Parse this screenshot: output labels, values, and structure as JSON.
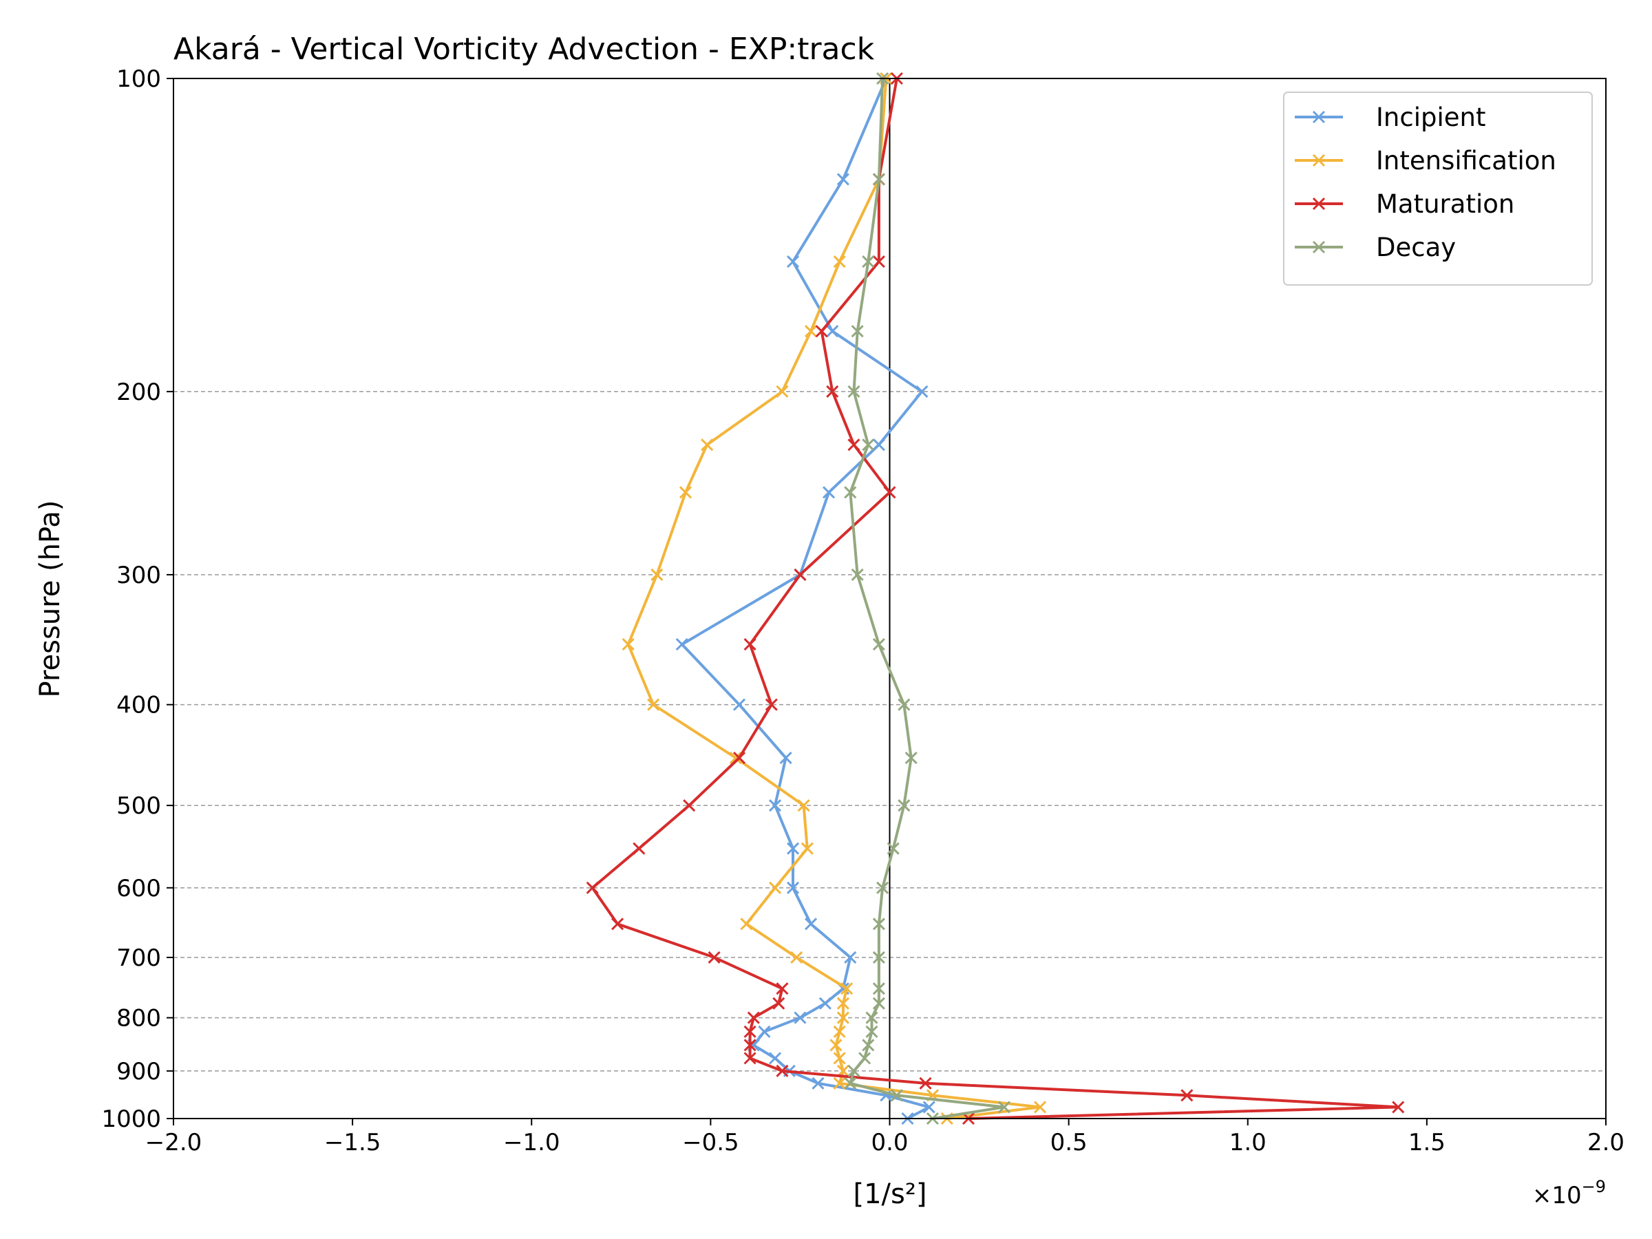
{
  "chart_data": {
    "type": "line",
    "title": "Akará - Vertical Vorticity Advection - EXP:track",
    "xlabel": "[1/s²]",
    "ylabel": "Pressure (hPa)",
    "x_multiplier": "×10",
    "x_multiplier_exp": "−9",
    "xlim": [
      -2.0,
      2.0
    ],
    "ylim": [
      1000,
      100
    ],
    "y_scale": "log",
    "x_ticks": [
      -2.0,
      -1.5,
      -1.0,
      -0.5,
      0.0,
      0.5,
      1.0,
      1.5,
      2.0
    ],
    "x_tick_labels": [
      "−2.0",
      "−1.5",
      "−1.0",
      "−0.5",
      "0.0",
      "0.5",
      "1.0",
      "1.5",
      "2.0"
    ],
    "y_ticks": [
      100,
      200,
      300,
      400,
      500,
      600,
      700,
      800,
      900,
      1000
    ],
    "y_tick_labels": [
      "100",
      "200",
      "300",
      "400",
      "500",
      "600",
      "700",
      "800",
      "900",
      "1000"
    ],
    "grid": "horizontal dashed",
    "zero_line": true,
    "legend_position": "top-right",
    "pressure_levels": [
      1000,
      975,
      950,
      925,
      900,
      875,
      850,
      825,
      800,
      775,
      750,
      700,
      650,
      600,
      550,
      500,
      450,
      400,
      350,
      300,
      250,
      225,
      200,
      175,
      150,
      125,
      100
    ],
    "series": [
      {
        "name": "Incipient",
        "color": "#6aa1e0",
        "values": [
          0.05,
          0.11,
          -0.01,
          -0.2,
          -0.28,
          -0.32,
          -0.38,
          -0.35,
          -0.25,
          -0.18,
          -0.13,
          -0.11,
          -0.22,
          -0.27,
          -0.27,
          -0.32,
          -0.29,
          -0.42,
          -0.58,
          -0.25,
          -0.17,
          -0.03,
          0.09,
          -0.16,
          -0.27,
          -0.13,
          -0.01
        ]
      },
      {
        "name": "Intensification",
        "color": "#f3b53a",
        "values": [
          0.16,
          0.42,
          0.12,
          -0.14,
          -0.13,
          -0.14,
          -0.15,
          -0.14,
          -0.13,
          -0.13,
          -0.12,
          -0.26,
          -0.4,
          -0.32,
          -0.23,
          -0.24,
          -0.43,
          -0.66,
          -0.73,
          -0.65,
          -0.57,
          -0.51,
          -0.3,
          -0.22,
          -0.14,
          -0.03,
          -0.01
        ]
      },
      {
        "name": "Maturation",
        "color": "#d62c2c",
        "values": [
          0.22,
          1.42,
          0.83,
          0.1,
          -0.3,
          -0.39,
          -0.39,
          -0.39,
          -0.38,
          -0.31,
          -0.3,
          -0.49,
          -0.76,
          -0.83,
          -0.7,
          -0.56,
          -0.42,
          -0.33,
          -0.39,
          -0.25,
          0.0,
          -0.1,
          -0.16,
          -0.19,
          -0.03,
          -0.03,
          0.02
        ]
      },
      {
        "name": "Decay",
        "color": "#94a87f",
        "values": [
          0.12,
          0.32,
          0.02,
          -0.11,
          -0.1,
          -0.07,
          -0.06,
          -0.05,
          -0.05,
          -0.03,
          -0.03,
          -0.03,
          -0.03,
          -0.02,
          0.01,
          0.04,
          0.06,
          0.04,
          -0.03,
          -0.09,
          -0.11,
          -0.06,
          -0.1,
          -0.09,
          -0.06,
          -0.03,
          -0.02
        ]
      }
    ]
  }
}
